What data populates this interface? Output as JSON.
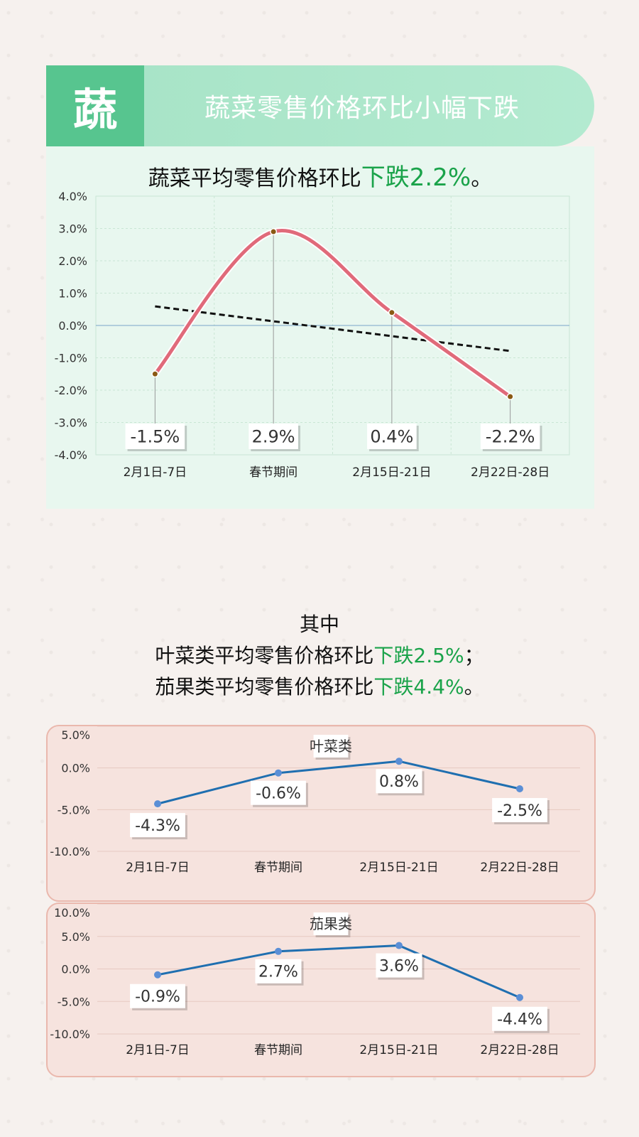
{
  "banner": {
    "badge": "蔬",
    "title": "蔬菜零售价格环比小幅下跌"
  },
  "summary": {
    "prefix": "蔬菜平均零售价格环比",
    "highlight": "下跌2.2%",
    "suffix": "。"
  },
  "middle": {
    "line1": "其中",
    "leaf_prefix": "叶菜类平均零售价格环比",
    "leaf_highlight": "下跌2.5%",
    "leaf_suffix": "；",
    "fruit_prefix": "茄果类平均零售价格环比",
    "fruit_highlight": "下跌4.4%",
    "fruit_suffix": "。"
  },
  "colors": {
    "main_line": "#e06a7a",
    "trend_line": "#111111",
    "marker": "#8a5a14",
    "small_line": "#1f6fb0",
    "small_marker": "#5b8fd6",
    "highlight": "#1aa34a"
  },
  "chart_data": [
    {
      "type": "line",
      "categories": [
        "2月1日-7日",
        "春节期间",
        "2月15日-21日",
        "2月22日-28日"
      ],
      "values": [
        -1.5,
        2.9,
        0.4,
        -2.2
      ],
      "data_labels": [
        "-1.5%",
        "2.9%",
        "0.4%",
        "-2.2%"
      ],
      "yticks": [
        "4.0%",
        "3.0%",
        "2.0%",
        "1.0%",
        "0.0%",
        "-1.0%",
        "-2.0%",
        "-3.0%",
        "-4.0%"
      ],
      "ylim": [
        -4,
        4
      ],
      "trendline": "linear",
      "smooth": true,
      "grid": true
    },
    {
      "type": "line",
      "title": "叶菜类",
      "categories": [
        "2月1日-7日",
        "春节期间",
        "2月15日-21日",
        "2月22日-28日"
      ],
      "values": [
        -4.3,
        -0.6,
        0.8,
        -2.5
      ],
      "data_labels": [
        "-4.3%",
        "-0.6%",
        "0.8%",
        "-2.5%"
      ],
      "yticks": [
        "5.0%",
        "0.0%",
        "-5.0%",
        "-10.0%"
      ],
      "ylim": [
        -10,
        5
      ],
      "grid": true
    },
    {
      "type": "line",
      "title": "茄果类",
      "categories": [
        "2月1日-7日",
        "春节期间",
        "2月15日-21日",
        "2月22日-28日"
      ],
      "values": [
        -0.9,
        2.7,
        3.6,
        -4.4
      ],
      "data_labels": [
        "-0.9%",
        "2.7%",
        "3.6%",
        "-4.4%"
      ],
      "yticks": [
        "10.0%",
        "5.0%",
        "0.0%",
        "-5.0%",
        "-10.0%"
      ],
      "ylim": [
        -10,
        10
      ],
      "grid": true
    }
  ]
}
